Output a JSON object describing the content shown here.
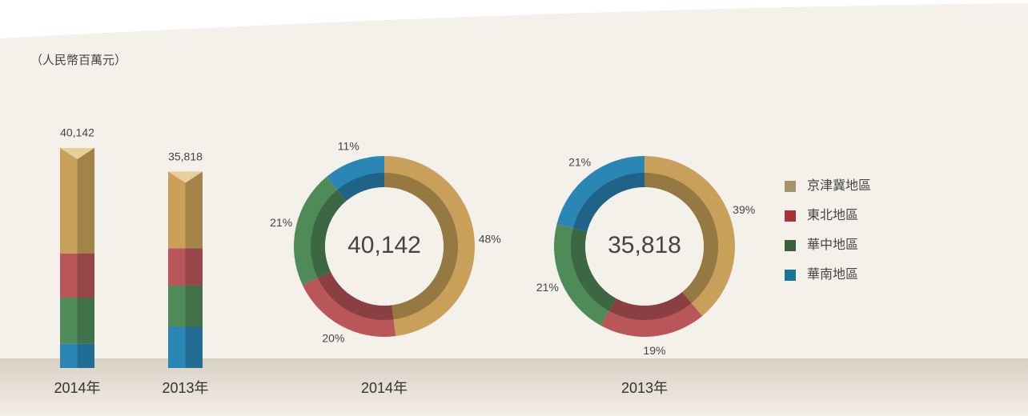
{
  "chart_data": [
    {
      "type": "stacked-bar",
      "y_label": "（人民幣百萬元）",
      "categories": [
        "2014年",
        "2013年"
      ],
      "series": [
        {
          "name": "京津冀地區",
          "color": "#c9a05a",
          "legend_color": "#a8946a",
          "values": [
            19268,
            13969
          ]
        },
        {
          "name": "東北地區",
          "color": "#b8565a",
          "legend_color": "#a83236",
          "values": [
            8028,
            6805
          ]
        },
        {
          "name": "華中地區",
          "color": "#4f8a59",
          "legend_color": "#3b5e3c",
          "values": [
            8430,
            7522
          ]
        },
        {
          "name": "華南地區",
          "color": "#2a86b5",
          "legend_color": "#1a7399",
          "values": [
            4416,
            7522
          ]
        }
      ],
      "totals": [
        40142,
        35818
      ],
      "total_labels": [
        "40,142",
        "35,818"
      ]
    },
    {
      "type": "donut",
      "category": "2014年",
      "center_value": 40142,
      "center_label": "40,142",
      "values": [
        48,
        20,
        21,
        11
      ],
      "value_labels": [
        "48%",
        "20%",
        "21%",
        "11%"
      ]
    },
    {
      "type": "donut",
      "category": "2013年",
      "center_value": 35818,
      "center_label": "35,818",
      "values": [
        39,
        19,
        21,
        21
      ],
      "value_labels": [
        "39%",
        "19%",
        "21%",
        "21%"
      ]
    }
  ]
}
